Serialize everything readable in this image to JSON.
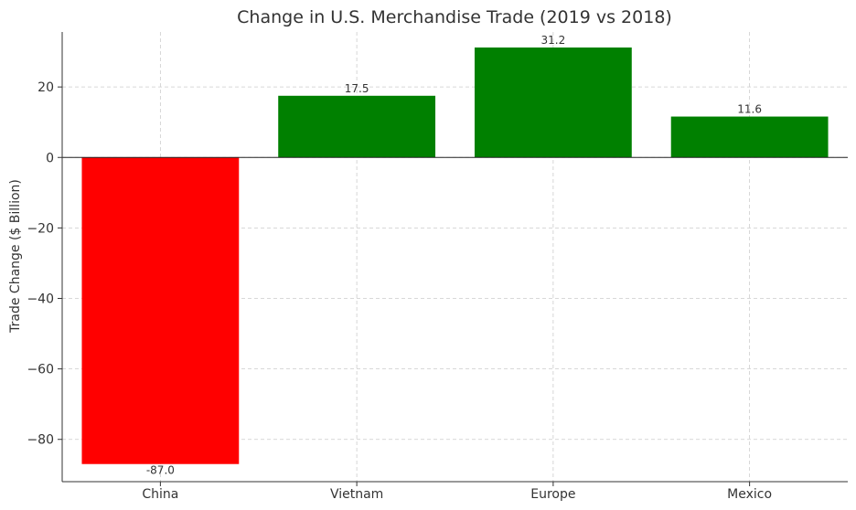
{
  "chart_data": {
    "type": "bar",
    "title": "Change in U.S. Merchandise Trade (2019 vs 2018)",
    "xlabel": "",
    "ylabel": "Trade Change ($ Billion)",
    "categories": [
      "China",
      "Vietnam",
      "Europe",
      "Mexico"
    ],
    "values": [
      -87.0,
      17.5,
      31.2,
      11.6
    ],
    "data_labels": [
      "-87.0",
      "17.5",
      "31.2",
      "11.6"
    ],
    "colors": [
      "#ff0000",
      "#008000",
      "#008000",
      "#008000"
    ],
    "ylim": [
      -92.0,
      35.6
    ],
    "yticks": [
      20,
      0,
      -20,
      -40,
      -60,
      -80
    ],
    "ytick_labels": [
      "20",
      "0",
      "−20",
      "−40",
      "−60",
      "−80"
    ],
    "grid": true,
    "zero_line": true
  }
}
